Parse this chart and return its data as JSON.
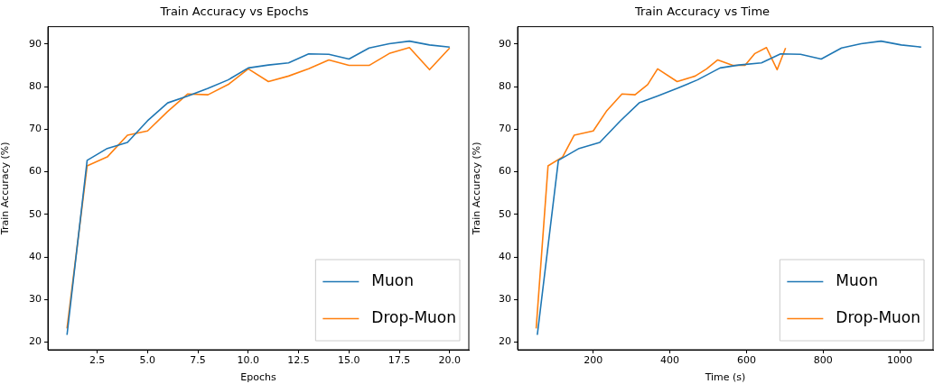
{
  "chart_data": [
    {
      "type": "line",
      "title": "Train Accuracy vs Epochs",
      "xlabel": "Epochs",
      "ylabel": "Train Accuracy (%)",
      "x": [
        1,
        2,
        3,
        4,
        5,
        6,
        7,
        8,
        9,
        10,
        11,
        12,
        13,
        14,
        15,
        16,
        17,
        18,
        19,
        20
      ],
      "series": [
        {
          "name": "Muon",
          "color": "#1f77b4",
          "values": [
            21.7,
            62.7,
            65.5,
            66.9,
            72.0,
            76.2,
            77.8,
            79.6,
            81.6,
            84.4,
            85.1,
            85.6,
            87.7,
            87.6,
            86.5,
            89.1,
            90.1,
            90.7,
            89.8,
            89.3
          ]
        },
        {
          "name": "Drop-Muon",
          "color": "#ff7f0e",
          "values": [
            23.2,
            61.4,
            63.5,
            68.6,
            69.6,
            74.2,
            78.3,
            78.1,
            80.5,
            84.2,
            81.2,
            82.5,
            84.2,
            86.3,
            85.0,
            85.0,
            87.8,
            89.2,
            84.0,
            89.1
          ]
        }
      ],
      "xlim": [
        0.05,
        20.95
      ],
      "xticks": [
        {
          "value": 2.5,
          "label": "2.5"
        },
        {
          "value": 5,
          "label": "5.0"
        },
        {
          "value": 7.5,
          "label": "7.5"
        },
        {
          "value": 10,
          "label": "10.0"
        },
        {
          "value": 12.5,
          "label": "12.5"
        },
        {
          "value": 15,
          "label": "15.0"
        },
        {
          "value": 17.5,
          "label": "17.5"
        },
        {
          "value": 20,
          "label": "20.0"
        }
      ],
      "ylim": [
        18.2,
        94.1
      ],
      "yticks": [
        20,
        30,
        40,
        50,
        60,
        70,
        80,
        90
      ],
      "grid": false,
      "legend": "bottom right"
    },
    {
      "type": "line",
      "title": "Train Accuracy vs Time",
      "xlabel": "Time (s)",
      "ylabel": "Train Accuracy (%)",
      "series": [
        {
          "name": "Muon",
          "color": "#1f77b4",
          "x": [
            54,
            109,
            163,
            217,
            271,
            320,
            368,
            419,
            472,
            531,
            580,
            639,
            689,
            741,
            795,
            848,
            899,
            951,
            1004,
            1056
          ],
          "values": [
            21.7,
            62.7,
            65.5,
            66.9,
            72.0,
            76.2,
            77.8,
            79.6,
            81.6,
            84.4,
            85.1,
            85.6,
            87.7,
            87.6,
            86.5,
            89.1,
            90.1,
            90.7,
            89.8,
            89.3
          ]
        },
        {
          "name": "Drop-Muon",
          "color": "#ff7f0e",
          "x": [
            51,
            82,
            120,
            150,
            200,
            234,
            275,
            309,
            342,
            368,
            419,
            466,
            496,
            525,
            564,
            596,
            622,
            652,
            680,
            702
          ],
          "values": [
            23.2,
            61.4,
            63.5,
            68.6,
            69.6,
            74.2,
            78.3,
            78.1,
            80.5,
            84.2,
            81.2,
            82.5,
            84.2,
            86.3,
            85.0,
            85.0,
            87.8,
            89.2,
            84.0,
            89.1
          ]
        }
      ],
      "xlim": [
        2.5,
        1087
      ],
      "xticks": [
        200,
        400,
        600,
        800,
        1000
      ],
      "ylim": [
        18.2,
        94.1
      ],
      "yticks": [
        20,
        30,
        40,
        50,
        60,
        70,
        80,
        90
      ],
      "grid": false,
      "legend": "bottom right"
    }
  ]
}
